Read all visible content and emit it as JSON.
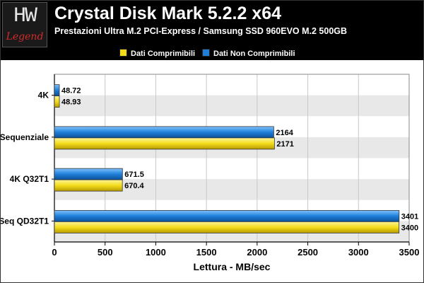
{
  "header": {
    "logo_text": "HW",
    "logo_sub": "Legend",
    "title": "Crystal Disk Mark 5.2.2 x64",
    "subtitle": "Prestazioni Ultra M.2 PCI-Express / Samsung SSD 960EVO M.2 500GB"
  },
  "colors": {
    "yellow": "#f2dc1a",
    "blue": "#1f7fd8"
  },
  "chart_data": {
    "type": "bar",
    "orientation": "horizontal",
    "categories": [
      "4K",
      "Sequenziale",
      "4K Q32T1",
      "Seq QD32T1"
    ],
    "series": [
      {
        "name": "Dati Comprimibili",
        "values": [
          48.93,
          2171,
          670.4,
          3400
        ]
      },
      {
        "name": "Dati Non Comprimibili",
        "values": [
          48.72,
          2164,
          671.5,
          3401
        ]
      }
    ],
    "data_labels": {
      "Dati Comprimibili": [
        "48.93",
        "2171",
        "670.4",
        "3400"
      ],
      "Dati Non Comprimibili": [
        "48.72",
        "2164",
        "671.5",
        "3401"
      ]
    },
    "xlabel": "Lettura - MB/sec",
    "xlim": [
      0,
      3500
    ],
    "xticks": [
      0,
      500,
      1000,
      1500,
      2000,
      2500,
      3000,
      3500
    ],
    "legend": "top",
    "grid": true
  }
}
